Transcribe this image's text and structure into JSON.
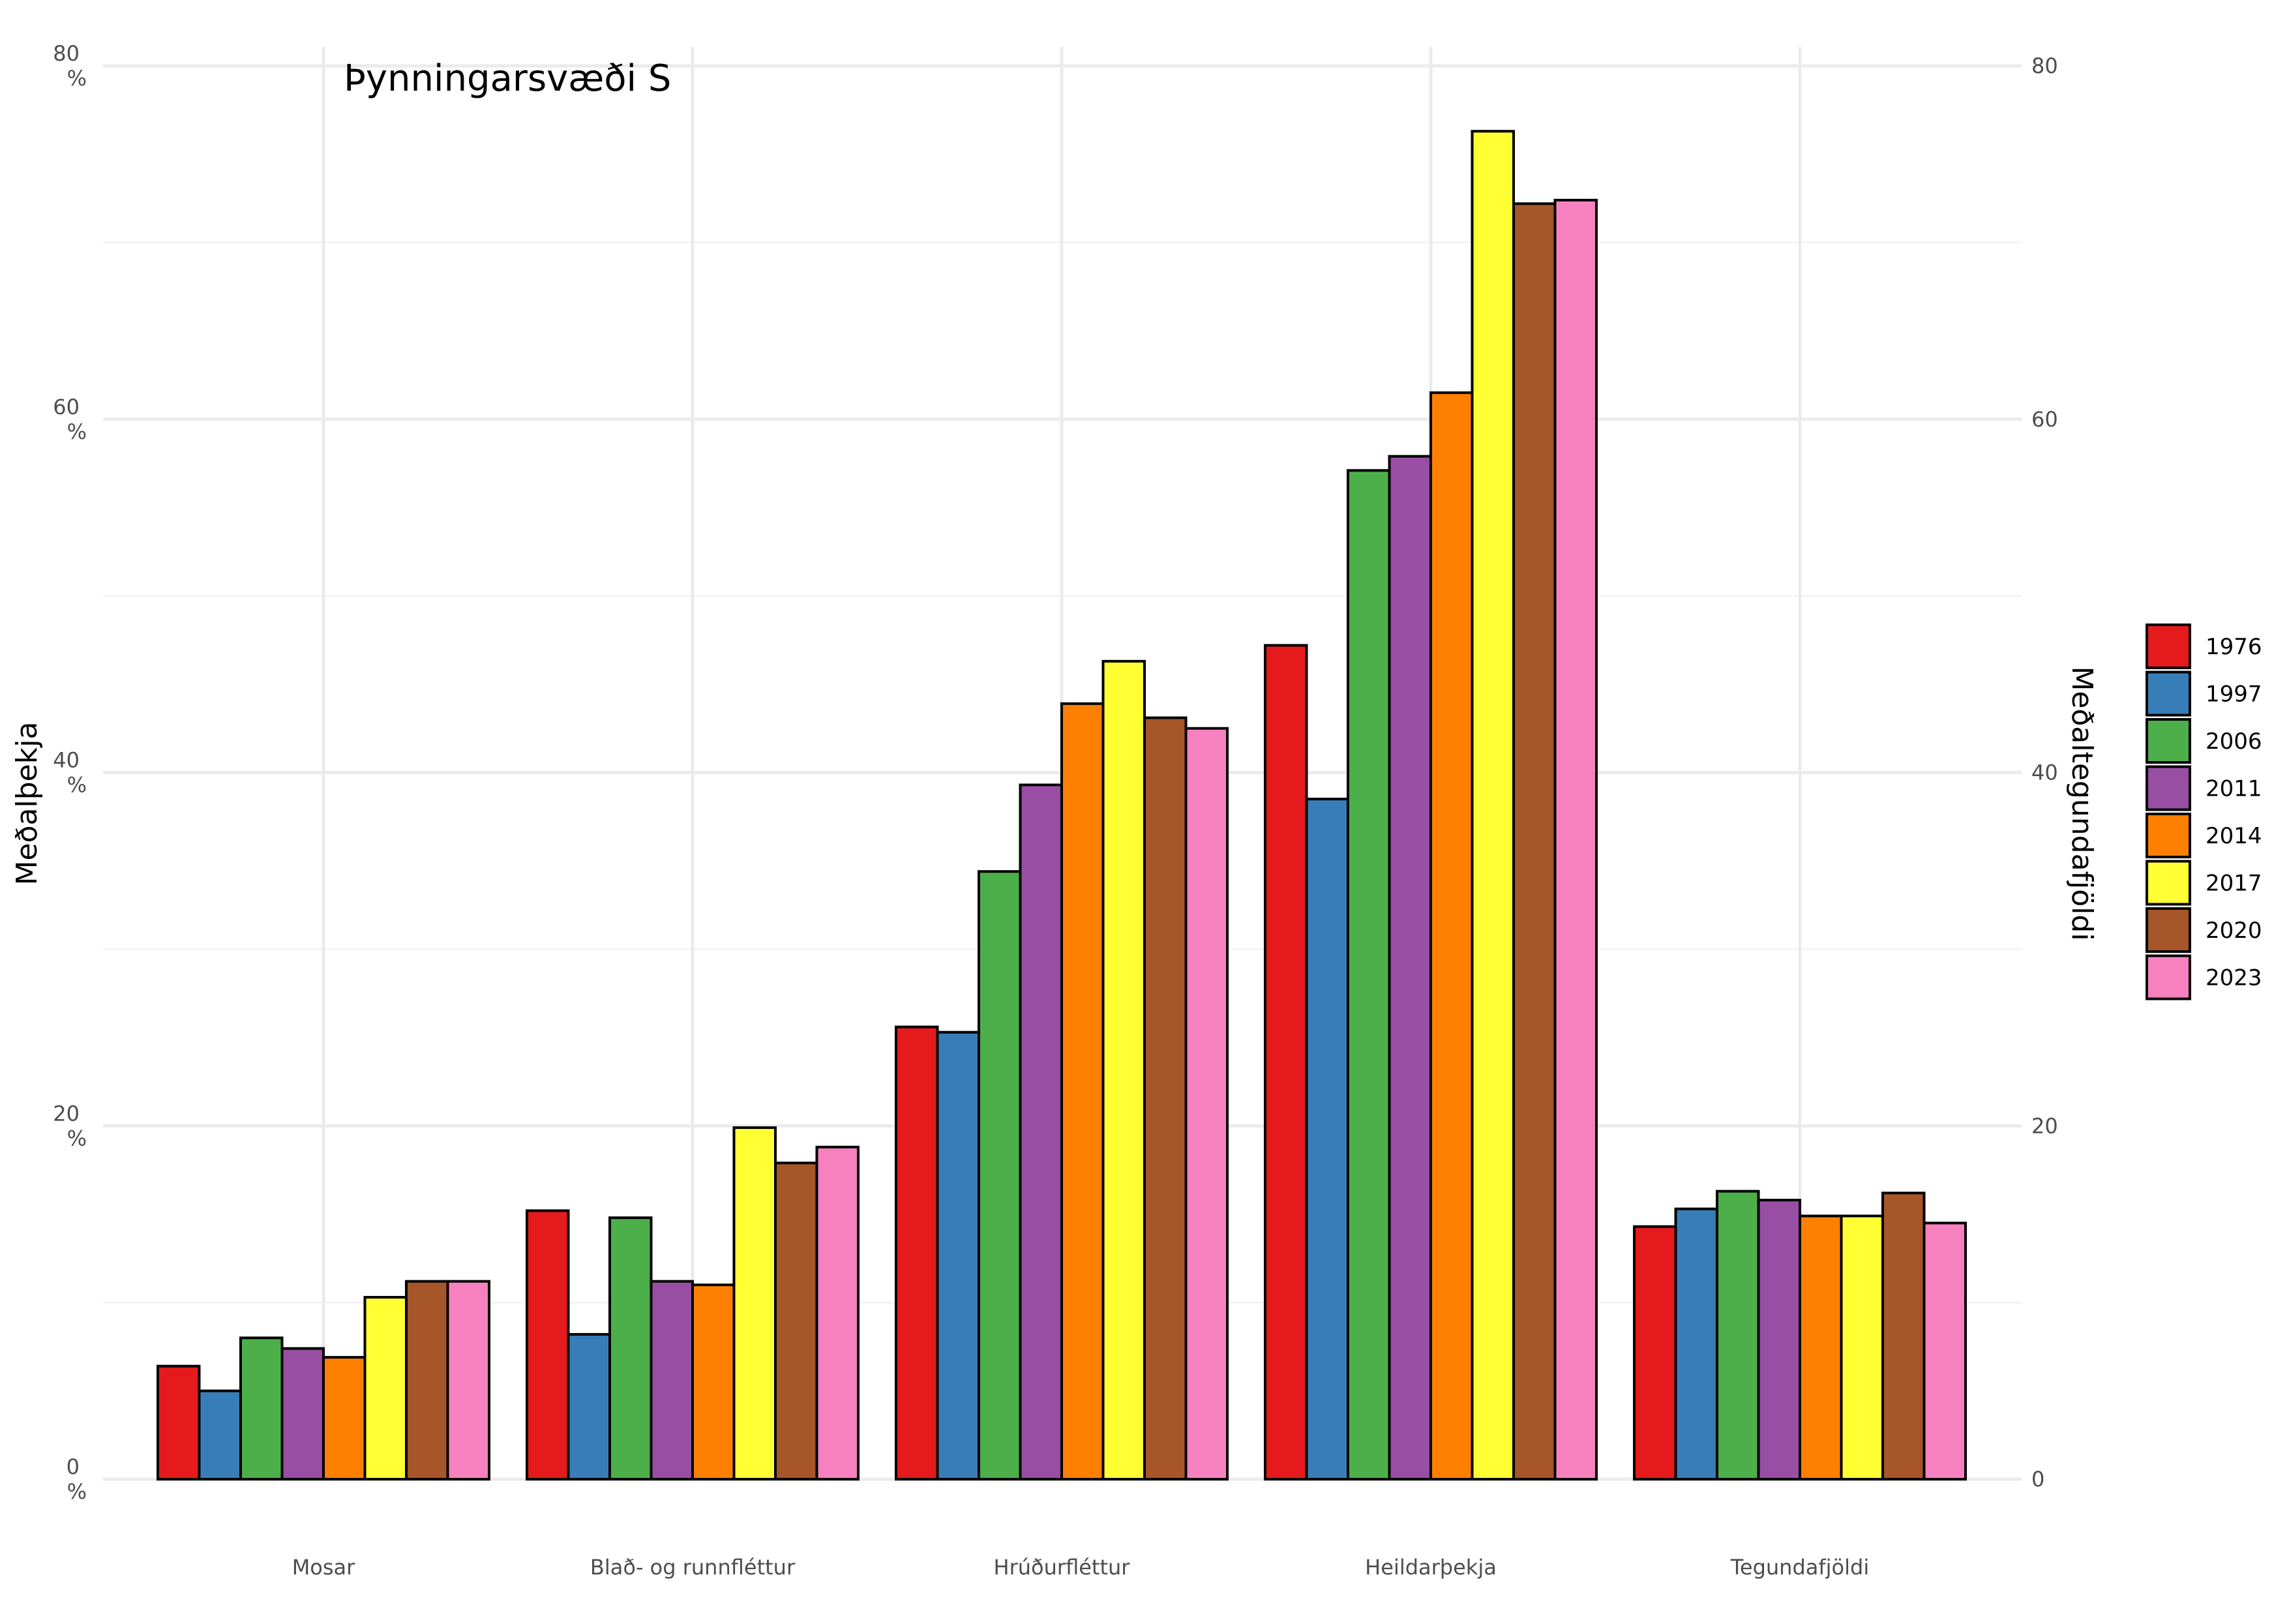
{
  "chart_data": {
    "type": "bar",
    "title": "Þynningarsvæði S",
    "ylabel": "Meðalþekja",
    "ylabel_right": "Meðaltegundafjöldi",
    "ylim": [
      0,
      80
    ],
    "y_ticks_left": [
      "0\n%",
      "20\n%",
      "40\n%",
      "60\n%",
      "80\n%"
    ],
    "y_ticks_right": [
      "0",
      "20",
      "40",
      "60",
      "80"
    ],
    "grid": true,
    "legend_position": "right",
    "categories": [
      "Mosar",
      "Blað- og runnfléttur",
      "Hrúðurfléttur",
      "Heildarþekja",
      "Tegundafjöldi"
    ],
    "series": [
      {
        "name": "1976",
        "color": "#e41a1c",
        "values": [
          6.4,
          15.2,
          25.6,
          47.2,
          14.3
        ]
      },
      {
        "name": "1997",
        "color": "#377eb8",
        "values": [
          5.0,
          8.2,
          25.3,
          38.5,
          15.3
        ]
      },
      {
        "name": "2006",
        "color": "#4daf4a",
        "values": [
          8.0,
          14.8,
          34.4,
          57.1,
          16.3
        ]
      },
      {
        "name": "2011",
        "color": "#984ea3",
        "values": [
          7.4,
          11.2,
          39.3,
          57.9,
          15.8
        ]
      },
      {
        "name": "2014",
        "color": "#ff7f00",
        "values": [
          6.9,
          11.0,
          43.9,
          61.5,
          14.9
        ]
      },
      {
        "name": "2017",
        "color": "#ffff33",
        "values": [
          10.3,
          19.9,
          46.3,
          76.3,
          14.9
        ]
      },
      {
        "name": "2020",
        "color": "#a65628",
        "values": [
          11.2,
          17.9,
          43.1,
          72.2,
          16.2
        ]
      },
      {
        "name": "2023",
        "color": "#f781bf",
        "values": [
          11.2,
          18.8,
          42.5,
          72.4,
          14.5
        ]
      }
    ]
  }
}
